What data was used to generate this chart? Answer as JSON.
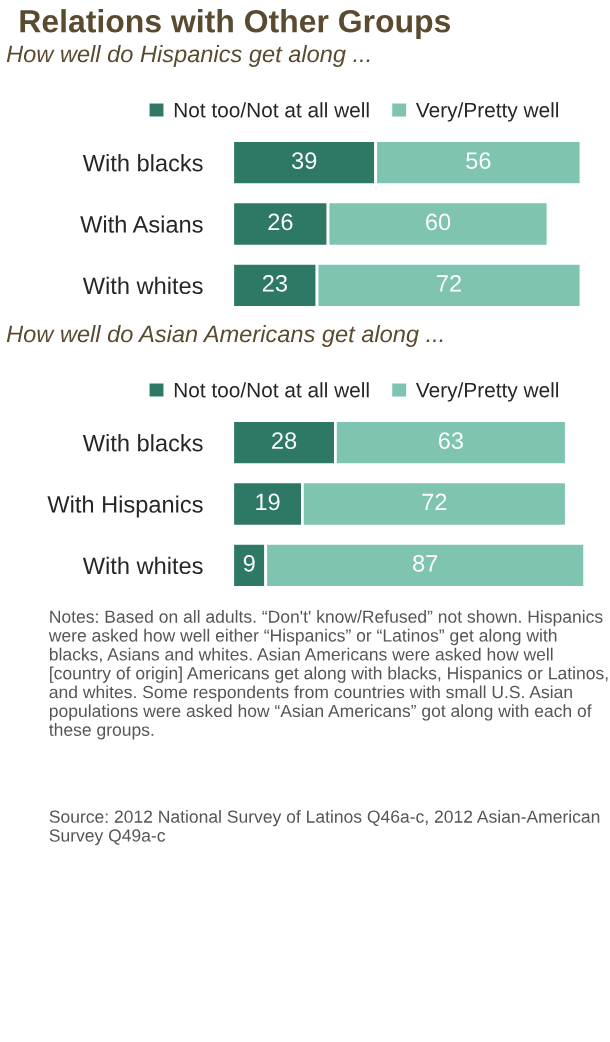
{
  "chart_data": [
    {
      "type": "bar",
      "orientation": "horizontal",
      "title": "Relations with Other Groups",
      "subtitle": "How well do Hispanics get along ...",
      "categories": [
        "With blacks",
        "With Asians",
        "With whites"
      ],
      "series": [
        {
          "name": "Not too/Not at all well",
          "color": "#2e7866",
          "values": [
            39,
            26,
            23
          ]
        },
        {
          "name": "Very/Pretty well",
          "color": "#7ec4b0",
          "values": [
            56,
            60,
            72
          ]
        }
      ],
      "stacked": true,
      "data_labels": true,
      "legend": "top",
      "tick_labels": "y"
    },
    {
      "type": "bar",
      "orientation": "horizontal",
      "subtitle": "How well do Asian Americans get along ...",
      "categories": [
        "With blacks",
        "With Hispanics",
        "With whites"
      ],
      "series": [
        {
          "name": "Not too/Not at all well",
          "color": "#2e7866",
          "values": [
            28,
            19,
            9
          ]
        },
        {
          "name": "Very/Pretty well",
          "color": "#7ec4b0",
          "values": [
            63,
            72,
            87
          ]
        }
      ],
      "stacked": true,
      "data_labels": true,
      "legend": "top",
      "tick_labels": "y",
      "annotations": [
        "Notes: Based on all adults. “Don't' know/Refused” not shown. Hispanics were asked how well either “Hispanics” or “Latinos” get along with blacks, Asians and whites. Asian Americans were asked how well [country of origin] Americans get along with blacks, Hispanics or Latinos, and whites. Some respondents from countries with small U.S. Asian populations were asked how “Asian Americans” got along with each of these groups.",
        "Source: 2012 National Survey of Latinos Q46a-c, 2012 Asian-American Survey Q49a-c"
      ]
    }
  ]
}
